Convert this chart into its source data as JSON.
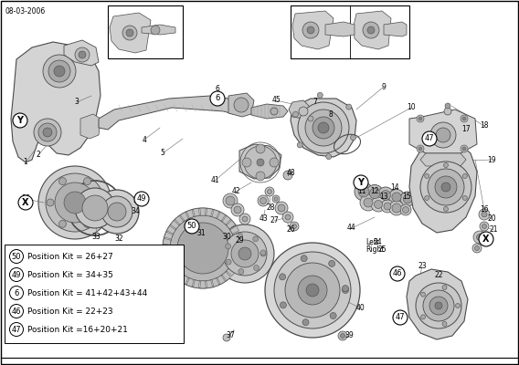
{
  "date_label": "08-03-2006",
  "bg": "#ffffff",
  "lc": "#4a4a4a",
  "bc": "#000000",
  "tc": "#000000",
  "gc": "#888888",
  "legend_items": [
    {
      "num": "50",
      "text": "Position Kit = 26+27"
    },
    {
      "num": "49",
      "text": "Position Kit = 34+35"
    },
    {
      "num": "6",
      "text": "Position Kit = 41+42+43+44"
    },
    {
      "num": "46",
      "text": "Position Kit = 22+23"
    },
    {
      "num": "47",
      "text": "Position Kit =16+20+21"
    }
  ],
  "fig_width": 5.68,
  "fig_height": 4.0,
  "dpi": 100
}
